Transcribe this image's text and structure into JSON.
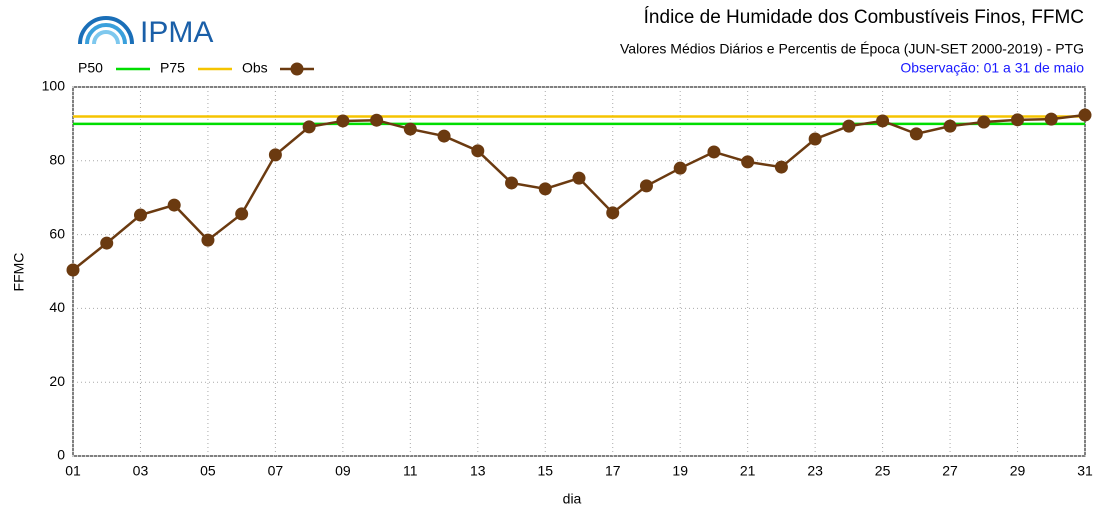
{
  "logo": "IPMA",
  "chart_data": {
    "type": "line",
    "title": "Índice de Humidade dos Combustíveis Finos, FFMC",
    "subtitle": "Valores Médios Diários e Percentis de Época (JUN-SET 2000-2019) - PTG",
    "annotation": "Observação: 01 a 31 de maio",
    "x_label": "dia",
    "y_label": "FFMC",
    "x": [
      1,
      2,
      3,
      4,
      5,
      6,
      7,
      8,
      9,
      10,
      11,
      12,
      13,
      14,
      15,
      16,
      17,
      18,
      19,
      20,
      21,
      22,
      23,
      24,
      25,
      26,
      27,
      28,
      29,
      30,
      31
    ],
    "series": [
      {
        "name": "P50",
        "color": "#00dd00",
        "markers": false,
        "values": [
          90,
          90,
          90,
          90,
          90,
          90,
          90,
          90,
          90,
          90,
          90,
          90,
          90,
          90,
          90,
          90,
          90,
          90,
          90,
          90,
          90,
          90,
          90,
          90,
          90,
          90,
          90,
          90,
          90,
          90,
          90
        ]
      },
      {
        "name": "P75",
        "color": "#f5c400",
        "markers": false,
        "values": [
          92,
          92,
          92,
          92,
          92,
          92,
          92,
          92,
          92,
          92,
          92,
          92,
          92,
          92,
          92,
          92,
          92,
          92,
          92,
          92,
          92,
          92,
          92,
          92,
          92,
          92,
          92,
          92,
          92,
          92,
          92
        ]
      },
      {
        "name": "Obs",
        "color": "#6b3a10",
        "markers": true,
        "values": [
          50.4,
          57.7,
          65.3,
          68,
          58.5,
          65.6,
          81.6,
          89.2,
          90.8,
          91,
          88.6,
          86.7,
          82.7,
          74,
          72.4,
          75.3,
          65.9,
          73.2,
          78,
          82.4,
          79.7,
          78.3,
          85.9,
          89.4,
          90.8,
          87.3,
          89.4,
          90.5,
          91.1,
          91.3,
          92.4
        ]
      }
    ],
    "xlim": [
      1,
      31
    ],
    "xticks": [
      {
        "value": 1,
        "label": "01"
      },
      {
        "value": 3,
        "label": "03"
      },
      {
        "value": 5,
        "label": "05"
      },
      {
        "value": 7,
        "label": "07"
      },
      {
        "value": 9,
        "label": "09"
      },
      {
        "value": 11,
        "label": "11"
      },
      {
        "value": 13,
        "label": "13"
      },
      {
        "value": 15,
        "label": "15"
      },
      {
        "value": 17,
        "label": "17"
      },
      {
        "value": 19,
        "label": "19"
      },
      {
        "value": 21,
        "label": "21"
      },
      {
        "value": 23,
        "label": "23"
      },
      {
        "value": 25,
        "label": "25"
      },
      {
        "value": 27,
        "label": "27"
      },
      {
        "value": 29,
        "label": "29"
      },
      {
        "value": 31,
        "label": "31"
      }
    ],
    "ylim": [
      0,
      100
    ],
    "yticks": [
      0,
      20,
      40,
      60,
      80,
      100
    ],
    "grid": true
  }
}
